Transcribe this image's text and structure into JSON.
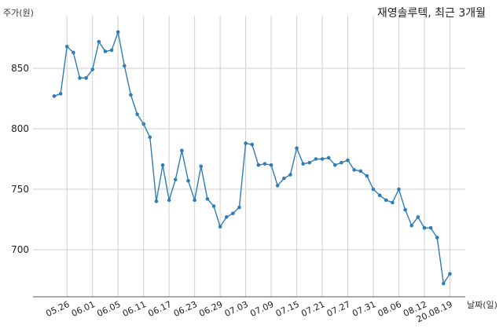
{
  "chart_data": {
    "type": "line",
    "title": "재영솔루텍, 최근 3개월",
    "ylabel": "주가(원)",
    "xlabel": "날짜(일)",
    "ylim": [
      665,
      905
    ],
    "yticks": [
      700,
      750,
      800,
      850
    ],
    "grid": true,
    "line_color": "#2e7db5",
    "x_tick_labels": [
      "05.26",
      "06.01",
      "06.05",
      "06.11",
      "06.17",
      "06.23",
      "06.29",
      "07.03",
      "07.09",
      "07.15",
      "07.21",
      "07.27",
      "07.31",
      "08.06",
      "08.12",
      "20.08.19"
    ],
    "x_tick_indices": [
      2,
      6,
      10,
      14,
      18,
      22,
      26,
      30,
      34,
      38,
      42,
      46,
      50,
      54,
      58,
      62
    ],
    "values": [
      827,
      829,
      868,
      863,
      842,
      842,
      849,
      872,
      864,
      865,
      880,
      852,
      828,
      812,
      804,
      793,
      740,
      770,
      741,
      758,
      782,
      757,
      741,
      769,
      742,
      736,
      719,
      727,
      730,
      735,
      788,
      787,
      770,
      771,
      770,
      753,
      759,
      762,
      784,
      771,
      772,
      775,
      775,
      776,
      770,
      772,
      774,
      766,
      765,
      761,
      750,
      745,
      741,
      739,
      750,
      733,
      720,
      727,
      718,
      718,
      710,
      672,
      680
    ]
  }
}
